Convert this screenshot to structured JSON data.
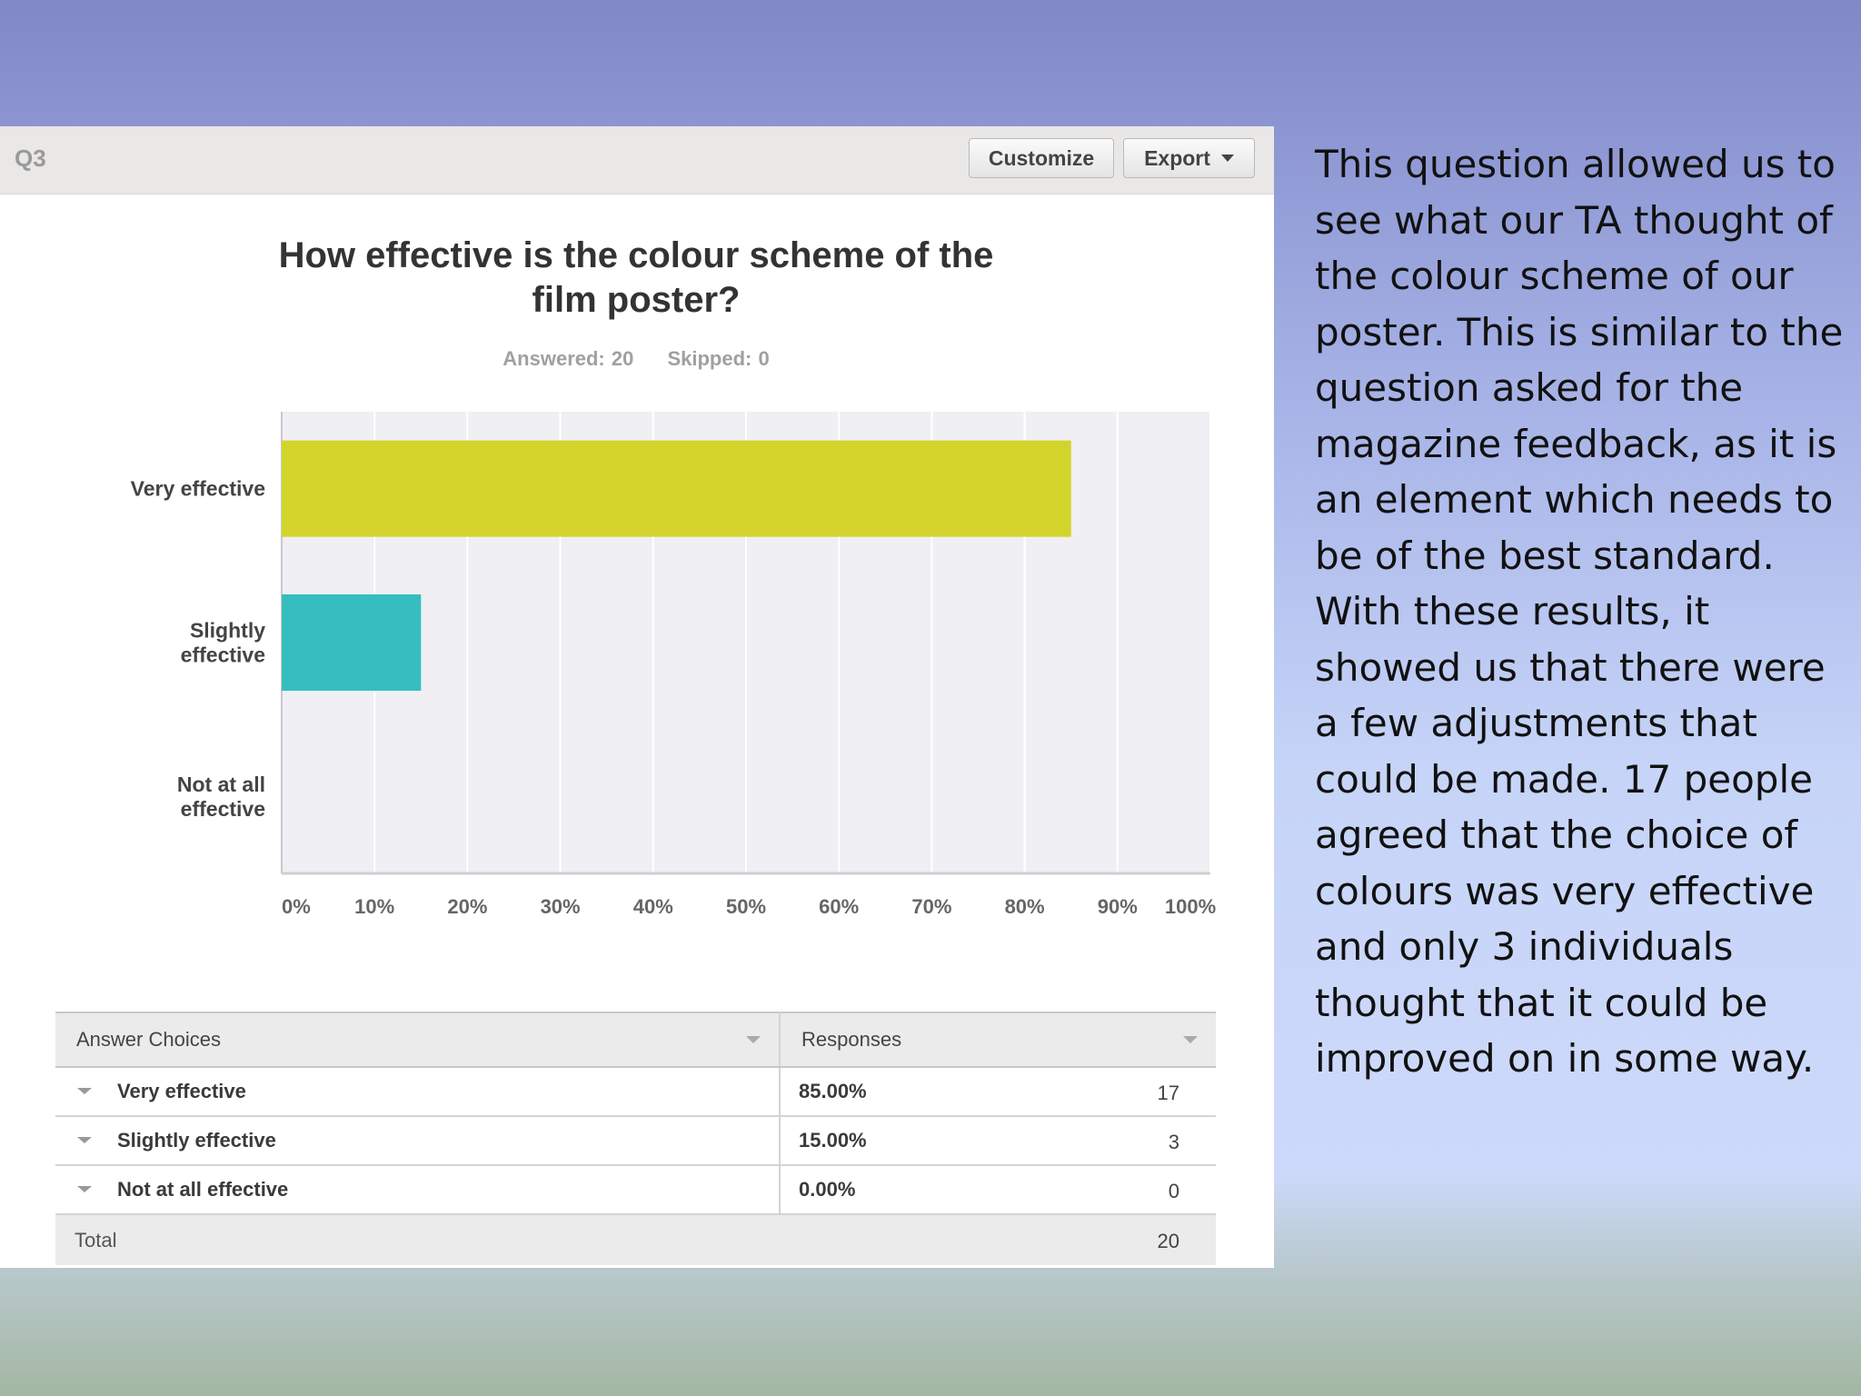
{
  "survey": {
    "question_number": "Q3",
    "customize_label": "Customize",
    "export_label": "Export",
    "title_line1": "How effective is the colour scheme of the",
    "title_line2": "film poster?",
    "answered": "Answered: 20",
    "skipped": "Skipped: 0"
  },
  "chart_data": {
    "type": "bar",
    "orientation": "horizontal",
    "categories": [
      [
        "Very effective"
      ],
      [
        "Slightly",
        "effective"
      ],
      [
        "Not at all",
        "effective"
      ]
    ],
    "values": [
      85,
      15,
      0
    ],
    "xlim": [
      0,
      100
    ],
    "ticks": [
      "0%",
      "10%",
      "20%",
      "30%",
      "40%",
      "50%",
      "60%",
      "70%",
      "80%",
      "90%",
      "100%"
    ],
    "colors": [
      "#d3d42b",
      "#36bdc0",
      "#8b8bd0"
    ],
    "grid": true
  },
  "table": {
    "headers": [
      "Answer Choices",
      "Responses"
    ],
    "rows": [
      {
        "choice": "Very effective",
        "percent": "85.00%",
        "count": "17"
      },
      {
        "choice": "Slightly effective",
        "percent": "15.00%",
        "count": "3"
      },
      {
        "choice": "Not at all effective",
        "percent": "0.00%",
        "count": "0"
      }
    ],
    "total_label": "Total",
    "total_value": "20"
  },
  "side_text": "This question allowed us to see what our TA thought of the colour scheme of our poster. This is similar to the question asked for the magazine feedback, as it is an element which needs to be of the best standard. With these results, it showed us that there were a few adjustments that could be made. 17 people agreed that the choice of colours was very effective and only 3 individuals thought that it could be improved on in some way."
}
